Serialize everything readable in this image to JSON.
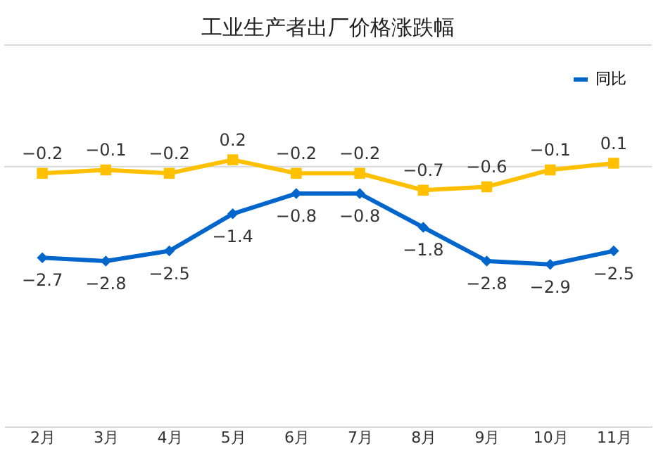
{
  "chart_data": {
    "type": "line",
    "title": "工业生产者出厂价格涨跌幅",
    "categories": [
      "2月",
      "3月",
      "4月",
      "5月",
      "6月",
      "7月",
      "8月",
      "9月",
      "10月",
      "11月"
    ],
    "series": [
      {
        "name": "同比",
        "color": "#0066cc",
        "marker": "diamond",
        "values": [
          -2.7,
          -2.8,
          -2.5,
          -1.4,
          -0.8,
          -0.8,
          -1.8,
          -2.8,
          -2.9,
          -2.5
        ]
      },
      {
        "color": "#ffc000",
        "marker": "square",
        "values": [
          -0.2,
          -0.1,
          -0.2,
          0.2,
          -0.2,
          -0.2,
          -0.7,
          -0.6,
          -0.1,
          0.1
        ]
      }
    ],
    "ylim": [
      -7.7,
      3.6
    ],
    "data_labels": true,
    "legend": "top right",
    "line_style": "solid",
    "ref_lines": [
      {
        "axis": "y",
        "value": 0,
        "color": "#d9d9d9"
      }
    ]
  }
}
